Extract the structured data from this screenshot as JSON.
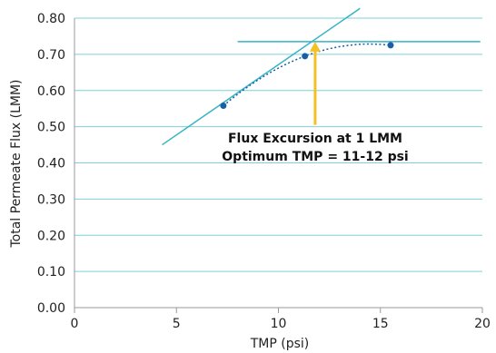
{
  "chart_data": {
    "type": "scatter",
    "title": "",
    "xlabel": "TMP (psi)",
    "ylabel": "Total Permeate Flux (LMM)",
    "xlim": [
      0,
      20
    ],
    "ylim": [
      0,
      0.8
    ],
    "x_ticks": [
      0,
      5,
      10,
      15,
      20
    ],
    "y_ticks": [
      0.0,
      0.1,
      0.2,
      0.3,
      0.4,
      0.5,
      0.6,
      0.7,
      0.8
    ],
    "x_tick_labels": [
      "0",
      "5",
      "10",
      "15",
      "20"
    ],
    "y_tick_labels": [
      "0.00",
      "0.10",
      "0.20",
      "0.30",
      "0.40",
      "0.50",
      "0.60",
      "0.70",
      "0.80"
    ],
    "grid": "horizontal",
    "legend": "none",
    "series": [
      {
        "x": [
          7.3,
          11.3,
          15.5
        ],
        "y": [
          0.558,
          0.695,
          0.725
        ],
        "color": "#1a5ea8",
        "trendline": "dotted polynomial fit"
      }
    ],
    "reference_lines": [
      {
        "kind": "initial-slope",
        "from": [
          4.3,
          0.45
        ],
        "to": [
          14.0,
          0.827
        ],
        "color": "#35b4c5"
      },
      {
        "kind": "plateau",
        "from": [
          8.0,
          0.735
        ],
        "to": [
          19.9,
          0.735
        ],
        "color": "#35b4c5"
      }
    ],
    "arrow": {
      "x": 11.8,
      "y_from": 0.505,
      "y_to": 0.735,
      "color": "#f5c024"
    },
    "annotations": [
      "Flux Excursion at 1 LMM",
      "Optimum TMP = 11-12 psi"
    ],
    "colors": {
      "grid": "#7fd0da",
      "axis": "#999999",
      "reference": "#35b4c5",
      "arrow": "#f5c024",
      "points": "#1a5ea8"
    }
  }
}
